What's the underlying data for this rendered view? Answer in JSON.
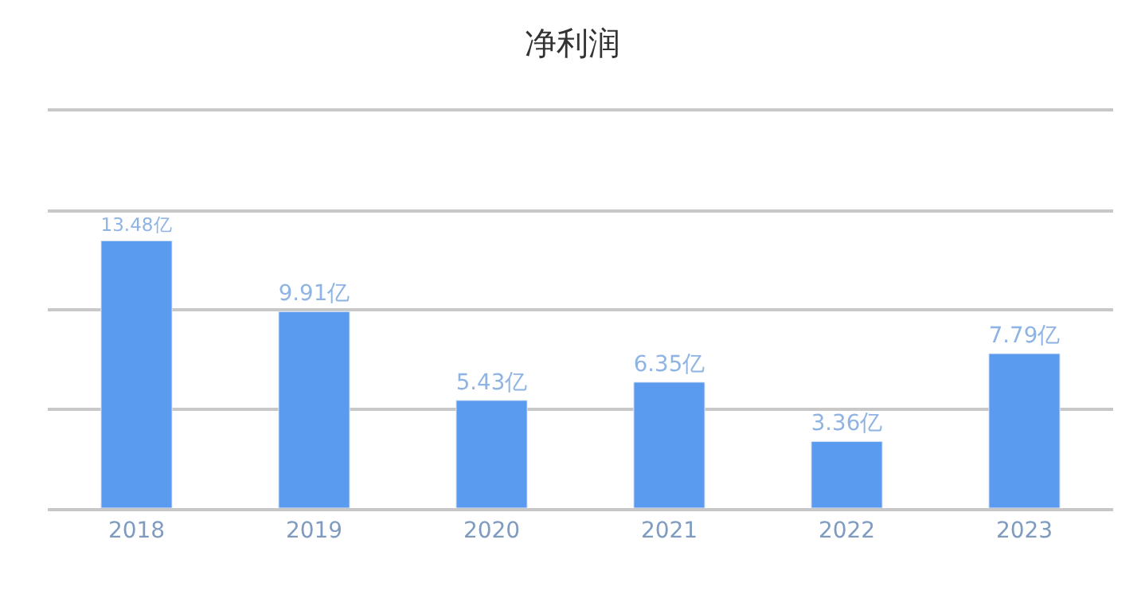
{
  "chart_data": {
    "type": "bar",
    "title": "净利润",
    "categories": [
      "2018",
      "2019",
      "2020",
      "2021",
      "2022",
      "2023"
    ],
    "series": [
      {
        "color": "#5b9bef",
        "values": [
          13.48,
          9.91,
          5.43,
          6.35,
          3.36,
          7.79
        ],
        "value_labels": [
          "13.48亿",
          "9.91亿",
          "5.43亿",
          "6.35亿",
          "3.36亿",
          "7.79亿"
        ]
      }
    ],
    "relative": false,
    "ylim": [
      0,
      20
    ],
    "yticks": [
      {
        "value": 5,
        "label": null
      },
      {
        "value": 10,
        "label": null
      },
      {
        "value": 15,
        "label": null
      }
    ],
    "tick_labels": "x",
    "grid": "y"
  }
}
